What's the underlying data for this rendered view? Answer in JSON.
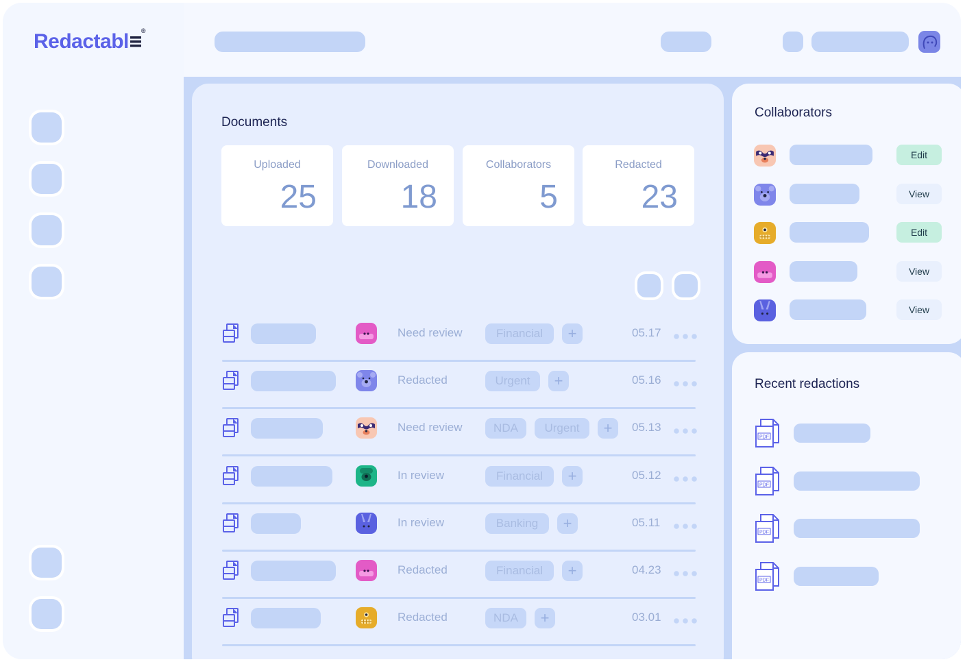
{
  "brand": {
    "name": "Redactabl",
    "registered": "®"
  },
  "documents": {
    "title": "Documents",
    "stats": [
      {
        "label": "Uploaded",
        "value": "25"
      },
      {
        "label": "Downloaded",
        "value": "18"
      },
      {
        "label": "Collaborators",
        "value": "5"
      },
      {
        "label": "Redacted",
        "value": "23"
      }
    ],
    "rows": [
      {
        "avatar": "pink-monster-avatar",
        "status": "Need review",
        "tags": [
          "Financial"
        ],
        "date": "05.17"
      },
      {
        "avatar": "blue-bear-avatar",
        "status": "Redacted",
        "tags": [
          "Urgent"
        ],
        "date": "05.16"
      },
      {
        "avatar": "sloth-avatar",
        "status": "Need review",
        "tags": [
          "NDA",
          "Urgent"
        ],
        "date": "05.13"
      },
      {
        "avatar": "green-frog-avatar",
        "status": "In review",
        "tags": [
          "Financial"
        ],
        "date": "05.12"
      },
      {
        "avatar": "purple-bunny-avatar",
        "status": "In review",
        "tags": [
          "Banking"
        ],
        "date": "05.11"
      },
      {
        "avatar": "pink-monster-avatar",
        "status": "Redacted",
        "tags": [
          "Financial"
        ],
        "date": "04.23"
      },
      {
        "avatar": "yellow-robot-avatar",
        "status": "Redacted",
        "tags": [
          "NDA"
        ],
        "date": "03.01"
      }
    ],
    "plus_label": "+"
  },
  "collaborators": {
    "title": "Collaborators",
    "items": [
      {
        "avatar": "sloth-avatar",
        "permission": "Edit"
      },
      {
        "avatar": "blue-bear-avatar",
        "permission": "View"
      },
      {
        "avatar": "yellow-robot-avatar",
        "permission": "Edit"
      },
      {
        "avatar": "pink-monster-avatar",
        "permission": "View"
      },
      {
        "avatar": "purple-bunny-avatar",
        "permission": "View"
      }
    ]
  },
  "recent": {
    "title": "Recent redactions",
    "file_label": "PDF"
  },
  "colors": {
    "accent": "#5b62e8",
    "placeholder": "#c3d5f7",
    "edit_badge": "#c6efe0",
    "view_badge": "#e9f0fd"
  }
}
